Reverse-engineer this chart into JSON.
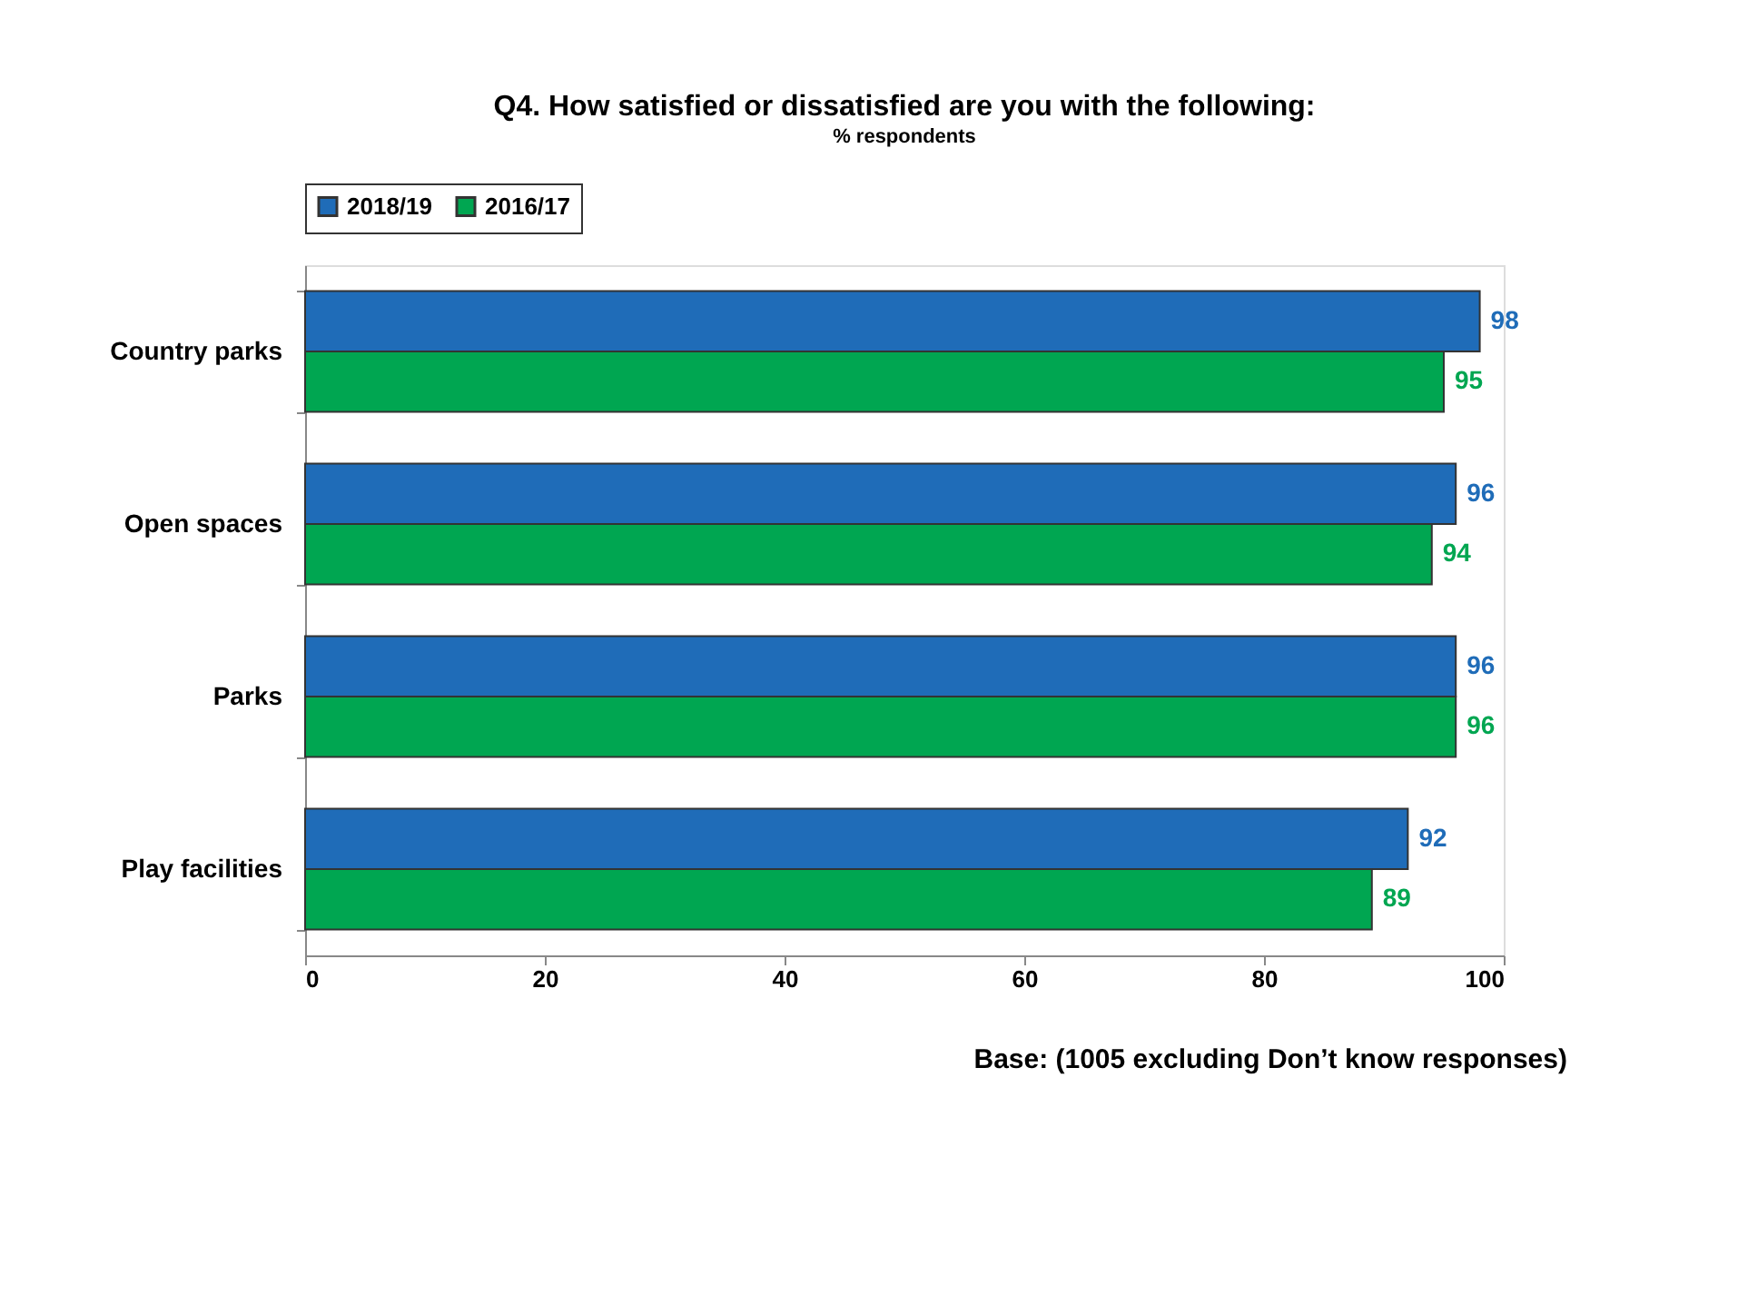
{
  "chart_data": {
    "type": "bar",
    "orientation": "horizontal",
    "title": "Q4. How satisfied or dissatisfied are you with the following:",
    "subtitle": "% respondents",
    "categories": [
      "Country parks",
      "Open spaces",
      "Parks",
      "Play facilities"
    ],
    "series": [
      {
        "name": "2018/19",
        "color": "#1f6cb8",
        "values": [
          98,
          96,
          96,
          92
        ]
      },
      {
        "name": "2016/17",
        "color": "#00a651",
        "values": [
          95,
          94,
          96,
          89
        ]
      }
    ],
    "xlim": [
      0,
      100
    ],
    "xticks": [
      0,
      20,
      40,
      60,
      80,
      100
    ],
    "grid": false,
    "legend": "top",
    "data_labels": true,
    "annotations": [
      "Base: (1005 excluding Don’t know responses)"
    ]
  }
}
